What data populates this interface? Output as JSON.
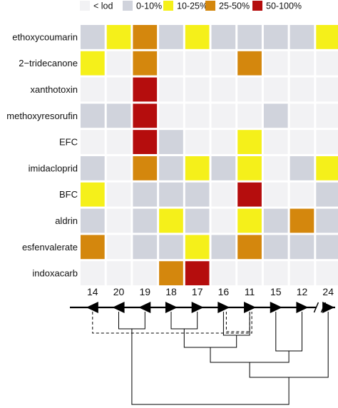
{
  "chart_data": {
    "type": "heatmap",
    "legend": [
      {
        "key": "lod",
        "label": "< lod",
        "color": "#f2f2f4"
      },
      {
        "key": "c0_10",
        "label": "0-10%",
        "color": "#d0d3dc"
      },
      {
        "key": "c10_25",
        "label": "10-25%",
        "color": "#f5f01a"
      },
      {
        "key": "c25_50",
        "label": "25-50%",
        "color": "#d4870d"
      },
      {
        "key": "c50_100",
        "label": "50-100%",
        "color": "#b50d0d"
      }
    ],
    "rows": [
      "ethoxycoumarin",
      "2−tridecanone",
      "xanthotoxin",
      "methoxyresorufin",
      "EFC",
      "imidacloprid",
      "BFC",
      "aldrin",
      "esfenvalerate",
      "indoxacarb"
    ],
    "columns": [
      "14",
      "20",
      "19",
      "18",
      "17",
      "16",
      "11",
      "15",
      "12",
      "24"
    ],
    "values": [
      [
        "0-10%",
        "10-25%",
        "25-50%",
        "0-10%",
        "10-25%",
        "0-10%",
        "0-10%",
        "0-10%",
        "0-10%",
        "10-25%"
      ],
      [
        "10-25%",
        "< lod",
        "25-50%",
        "< lod",
        "< lod",
        "< lod",
        "25-50%",
        "< lod",
        "< lod",
        "< lod"
      ],
      [
        "< lod",
        "< lod",
        "50-100%",
        "< lod",
        "< lod",
        "< lod",
        "< lod",
        "< lod",
        "< lod",
        "< lod"
      ],
      [
        "0-10%",
        "0-10%",
        "50-100%",
        "< lod",
        "< lod",
        "< lod",
        "< lod",
        "0-10%",
        "< lod",
        "< lod"
      ],
      [
        "< lod",
        "< lod",
        "50-100%",
        "0-10%",
        "< lod",
        "< lod",
        "10-25%",
        "< lod",
        "< lod",
        "< lod"
      ],
      [
        "0-10%",
        "< lod",
        "25-50%",
        "0-10%",
        "10-25%",
        "0-10%",
        "10-25%",
        "< lod",
        "0-10%",
        "10-25%"
      ],
      [
        "10-25%",
        "< lod",
        "0-10%",
        "0-10%",
        "0-10%",
        "< lod",
        "50-100%",
        "< lod",
        "< lod",
        "0-10%"
      ],
      [
        "0-10%",
        "< lod",
        "0-10%",
        "10-25%",
        "0-10%",
        "< lod",
        "10-25%",
        "0-10%",
        "25-50%",
        "0-10%"
      ],
      [
        "25-50%",
        "< lod",
        "0-10%",
        "0-10%",
        "10-25%",
        "0-10%",
        "25-50%",
        "0-10%",
        "0-10%",
        "0-10%"
      ],
      [
        "< lod",
        "< lod",
        "< lod",
        "25-50%",
        "50-100%",
        "< lod",
        "< lod",
        "< lod",
        "< lod",
        "< lod"
      ]
    ],
    "phylogeny": {
      "tips": [
        "14",
        "20",
        "19",
        "18",
        "17",
        "16",
        "11",
        "15",
        "12",
        "24"
      ],
      "clades": [
        {
          "members": [
            "20",
            "19"
          ],
          "dashed": false
        },
        {
          "members": [
            "18",
            "17"
          ],
          "dashed": false
        },
        {
          "members": [
            "16",
            "11"
          ],
          "dashed": false
        },
        {
          "members": [
            "16",
            "11"
          ],
          "dashed": true
        },
        {
          "members": [
            "14",
            "11"
          ],
          "dashed": true
        },
        {
          "members": [
            "18",
            "17",
            "16",
            "11"
          ],
          "dashed": false
        },
        {
          "members": [
            "15",
            "12"
          ],
          "dashed": false
        },
        {
          "members": [
            "18",
            "17",
            "16",
            "11",
            "15",
            "12"
          ],
          "dashed": false
        },
        {
          "members": [
            "18",
            "17",
            "16",
            "11",
            "15",
            "12",
            "24"
          ],
          "dashed": false
        },
        {
          "members": [
            "20",
            "19",
            "18",
            "17",
            "16",
            "11",
            "15",
            "12",
            "24"
          ],
          "dashed": false
        }
      ]
    }
  }
}
